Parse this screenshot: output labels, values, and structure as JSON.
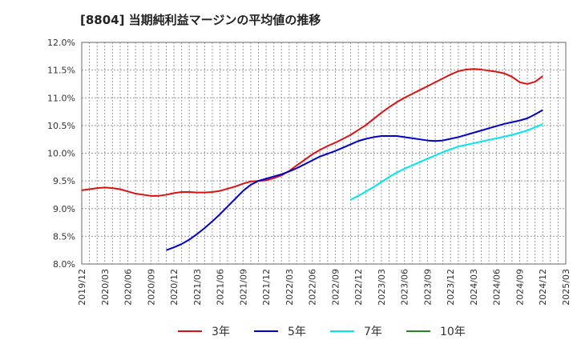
{
  "chart_data": {
    "type": "line",
    "title": "[8804]  当期純利益マージンの平均値の推移",
    "xlabel": "",
    "ylabel": "",
    "y_unit": "%",
    "ylim": [
      8.0,
      12.0
    ],
    "y_ticks": [
      "12.0%",
      "11.5%",
      "11.0%",
      "10.5%",
      "10.0%",
      "9.5%",
      "9.0%",
      "8.5%",
      "8.0%"
    ],
    "y_tick_values": [
      12.0,
      11.5,
      11.0,
      10.5,
      10.0,
      9.5,
      9.0,
      8.5,
      8.0
    ],
    "x_ticks": [
      "2019/12",
      "2020/03",
      "2020/06",
      "2020/09",
      "2020/12",
      "2021/03",
      "2021/06",
      "2021/09",
      "2021/12",
      "2022/03",
      "2022/06",
      "2022/09",
      "2022/12",
      "2023/03",
      "2023/06",
      "2023/09",
      "2023/12",
      "2024/03",
      "2024/06",
      "2024/09",
      "2024/12",
      "2025/03"
    ],
    "grid": true,
    "legend_position": "bottom",
    "series": [
      {
        "name": "3年",
        "color": "#dd1111",
        "points": [
          [
            "2019/12",
            9.33
          ],
          [
            "2020/01",
            9.35
          ],
          [
            "2020/02",
            9.37
          ],
          [
            "2020/03",
            9.38
          ],
          [
            "2020/04",
            9.37
          ],
          [
            "2020/05",
            9.35
          ],
          [
            "2020/06",
            9.31
          ],
          [
            "2020/07",
            9.27
          ],
          [
            "2020/08",
            9.25
          ],
          [
            "2020/09",
            9.23
          ],
          [
            "2020/10",
            9.23
          ],
          [
            "2020/11",
            9.25
          ],
          [
            "2020/12",
            9.28
          ],
          [
            "2021/01",
            9.3
          ],
          [
            "2021/02",
            9.3
          ],
          [
            "2021/03",
            9.29
          ],
          [
            "2021/04",
            9.29
          ],
          [
            "2021/05",
            9.3
          ],
          [
            "2021/06",
            9.32
          ],
          [
            "2021/07",
            9.36
          ],
          [
            "2021/08",
            9.4
          ],
          [
            "2021/09",
            9.45
          ],
          [
            "2021/10",
            9.49
          ],
          [
            "2021/11",
            9.5
          ],
          [
            "2021/12",
            9.51
          ],
          [
            "2022/01",
            9.55
          ],
          [
            "2022/02",
            9.6
          ],
          [
            "2022/03",
            9.68
          ],
          [
            "2022/04",
            9.78
          ],
          [
            "2022/05",
            9.88
          ],
          [
            "2022/06",
            9.98
          ],
          [
            "2022/07",
            10.06
          ],
          [
            "2022/08",
            10.13
          ],
          [
            "2022/09",
            10.19
          ],
          [
            "2022/10",
            10.26
          ],
          [
            "2022/11",
            10.33
          ],
          [
            "2022/12",
            10.42
          ],
          [
            "2023/01",
            10.51
          ],
          [
            "2023/02",
            10.62
          ],
          [
            "2023/03",
            10.73
          ],
          [
            "2023/04",
            10.83
          ],
          [
            "2023/05",
            10.92
          ],
          [
            "2023/06",
            11.0
          ],
          [
            "2023/07",
            11.07
          ],
          [
            "2023/08",
            11.14
          ],
          [
            "2023/09",
            11.21
          ],
          [
            "2023/10",
            11.28
          ],
          [
            "2023/11",
            11.35
          ],
          [
            "2023/12",
            11.42
          ],
          [
            "2024/01",
            11.48
          ],
          [
            "2024/02",
            11.51
          ],
          [
            "2024/03",
            11.52
          ],
          [
            "2024/04",
            11.51
          ],
          [
            "2024/05",
            11.49
          ],
          [
            "2024/06",
            11.47
          ],
          [
            "2024/07",
            11.44
          ],
          [
            "2024/08",
            11.38
          ],
          [
            "2024/09",
            11.28
          ],
          [
            "2024/10",
            11.25
          ],
          [
            "2024/11",
            11.29
          ],
          [
            "2024/12",
            11.39
          ]
        ]
      },
      {
        "name": "5年",
        "color": "#0000cc",
        "points": [
          [
            "2020/11",
            8.25
          ],
          [
            "2020/12",
            8.3
          ],
          [
            "2021/01",
            8.36
          ],
          [
            "2021/02",
            8.44
          ],
          [
            "2021/03",
            8.54
          ],
          [
            "2021/04",
            8.65
          ],
          [
            "2021/05",
            8.77
          ],
          [
            "2021/06",
            8.9
          ],
          [
            "2021/07",
            9.04
          ],
          [
            "2021/08",
            9.18
          ],
          [
            "2021/09",
            9.32
          ],
          [
            "2021/10",
            9.43
          ],
          [
            "2021/11",
            9.5
          ],
          [
            "2021/12",
            9.54
          ],
          [
            "2022/01",
            9.58
          ],
          [
            "2022/02",
            9.62
          ],
          [
            "2022/03",
            9.67
          ],
          [
            "2022/04",
            9.73
          ],
          [
            "2022/05",
            9.8
          ],
          [
            "2022/06",
            9.87
          ],
          [
            "2022/07",
            9.94
          ],
          [
            "2022/08",
            9.99
          ],
          [
            "2022/09",
            10.04
          ],
          [
            "2022/10",
            10.1
          ],
          [
            "2022/11",
            10.16
          ],
          [
            "2022/12",
            10.22
          ],
          [
            "2023/01",
            10.26
          ],
          [
            "2023/02",
            10.29
          ],
          [
            "2023/03",
            10.31
          ],
          [
            "2023/04",
            10.31
          ],
          [
            "2023/05",
            10.31
          ],
          [
            "2023/06",
            10.29
          ],
          [
            "2023/07",
            10.27
          ],
          [
            "2023/08",
            10.25
          ],
          [
            "2023/09",
            10.23
          ],
          [
            "2023/10",
            10.22
          ],
          [
            "2023/11",
            10.23
          ],
          [
            "2023/12",
            10.26
          ],
          [
            "2024/01",
            10.29
          ],
          [
            "2024/02",
            10.33
          ],
          [
            "2024/03",
            10.37
          ],
          [
            "2024/04",
            10.41
          ],
          [
            "2024/05",
            10.45
          ],
          [
            "2024/06",
            10.49
          ],
          [
            "2024/07",
            10.53
          ],
          [
            "2024/08",
            10.56
          ],
          [
            "2024/09",
            10.59
          ],
          [
            "2024/10",
            10.63
          ],
          [
            "2024/11",
            10.7
          ],
          [
            "2024/12",
            10.78
          ]
        ]
      },
      {
        "name": "7年",
        "color": "#00e5ee",
        "points": [
          [
            "2022/11",
            9.16
          ],
          [
            "2022/12",
            9.23
          ],
          [
            "2023/01",
            9.31
          ],
          [
            "2023/02",
            9.39
          ],
          [
            "2023/03",
            9.48
          ],
          [
            "2023/04",
            9.57
          ],
          [
            "2023/05",
            9.65
          ],
          [
            "2023/06",
            9.72
          ],
          [
            "2023/07",
            9.78
          ],
          [
            "2023/08",
            9.84
          ],
          [
            "2023/09",
            9.9
          ],
          [
            "2023/10",
            9.96
          ],
          [
            "2023/11",
            10.02
          ],
          [
            "2023/12",
            10.07
          ],
          [
            "2024/01",
            10.12
          ],
          [
            "2024/02",
            10.15
          ],
          [
            "2024/03",
            10.18
          ],
          [
            "2024/04",
            10.21
          ],
          [
            "2024/05",
            10.24
          ],
          [
            "2024/06",
            10.27
          ],
          [
            "2024/07",
            10.3
          ],
          [
            "2024/08",
            10.33
          ],
          [
            "2024/09",
            10.37
          ],
          [
            "2024/10",
            10.41
          ],
          [
            "2024/11",
            10.47
          ],
          [
            "2024/12",
            10.52
          ]
        ]
      },
      {
        "name": "10年",
        "color": "#228b22",
        "points": []
      }
    ]
  }
}
